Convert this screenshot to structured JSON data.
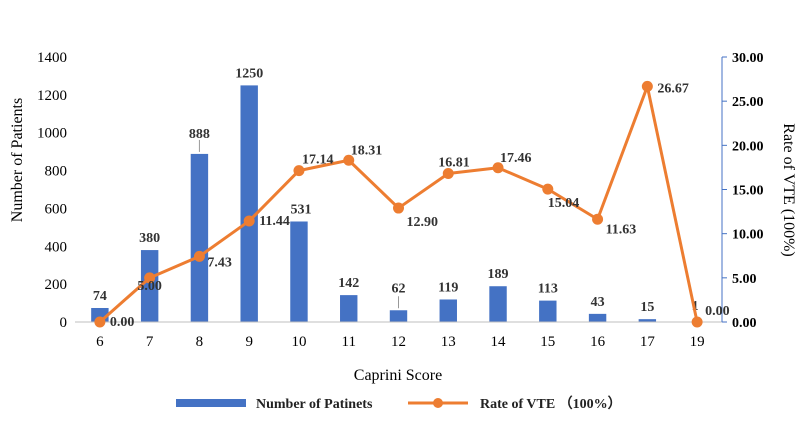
{
  "chart_data": {
    "type": "bar+line",
    "categories": [
      "6",
      "7",
      "8",
      "9",
      "10",
      "11",
      "12",
      "13",
      "14",
      "15",
      "16",
      "17",
      "19"
    ],
    "series": [
      {
        "name": "Number of Patinets",
        "type": "bar",
        "axis": "left",
        "color": "#4472C4",
        "values": [
          74,
          380,
          888,
          1250,
          531,
          142,
          62,
          119,
          189,
          113,
          43,
          15,
          1
        ],
        "labels": [
          "74",
          "380",
          "888",
          "1250",
          "531",
          "142",
          "62",
          "119",
          "189",
          "113",
          "43",
          "15",
          "1"
        ]
      },
      {
        "name": "Rate of VTE （100%）",
        "type": "line",
        "axis": "right",
        "color": "#ED7D31",
        "values": [
          0.0,
          5.0,
          7.43,
          11.44,
          17.14,
          18.31,
          12.9,
          16.81,
          17.46,
          15.04,
          11.63,
          26.67,
          0.0
        ],
        "labels": [
          "0.00",
          "5.00",
          "7.43",
          "11.44",
          "17.14",
          "18.31",
          "12.90",
          "16.81",
          "17.46",
          "15.04",
          "11.63",
          "26.67",
          "0.00"
        ]
      }
    ],
    "xlabel": "Caprini Score",
    "ylabel": "Number of Patients",
    "y2label": "Rate of VTE (100%)",
    "ylim": [
      0,
      1400
    ],
    "y2lim": [
      0,
      30
    ],
    "yticks": [
      "0",
      "200",
      "400",
      "600",
      "800",
      "1000",
      "1200",
      "1400"
    ],
    "y2ticks": [
      "0.00",
      "5.00",
      "10.00",
      "15.00",
      "20.00",
      "25.00",
      "30.00"
    ],
    "grid": false,
    "legend": "bottom"
  }
}
